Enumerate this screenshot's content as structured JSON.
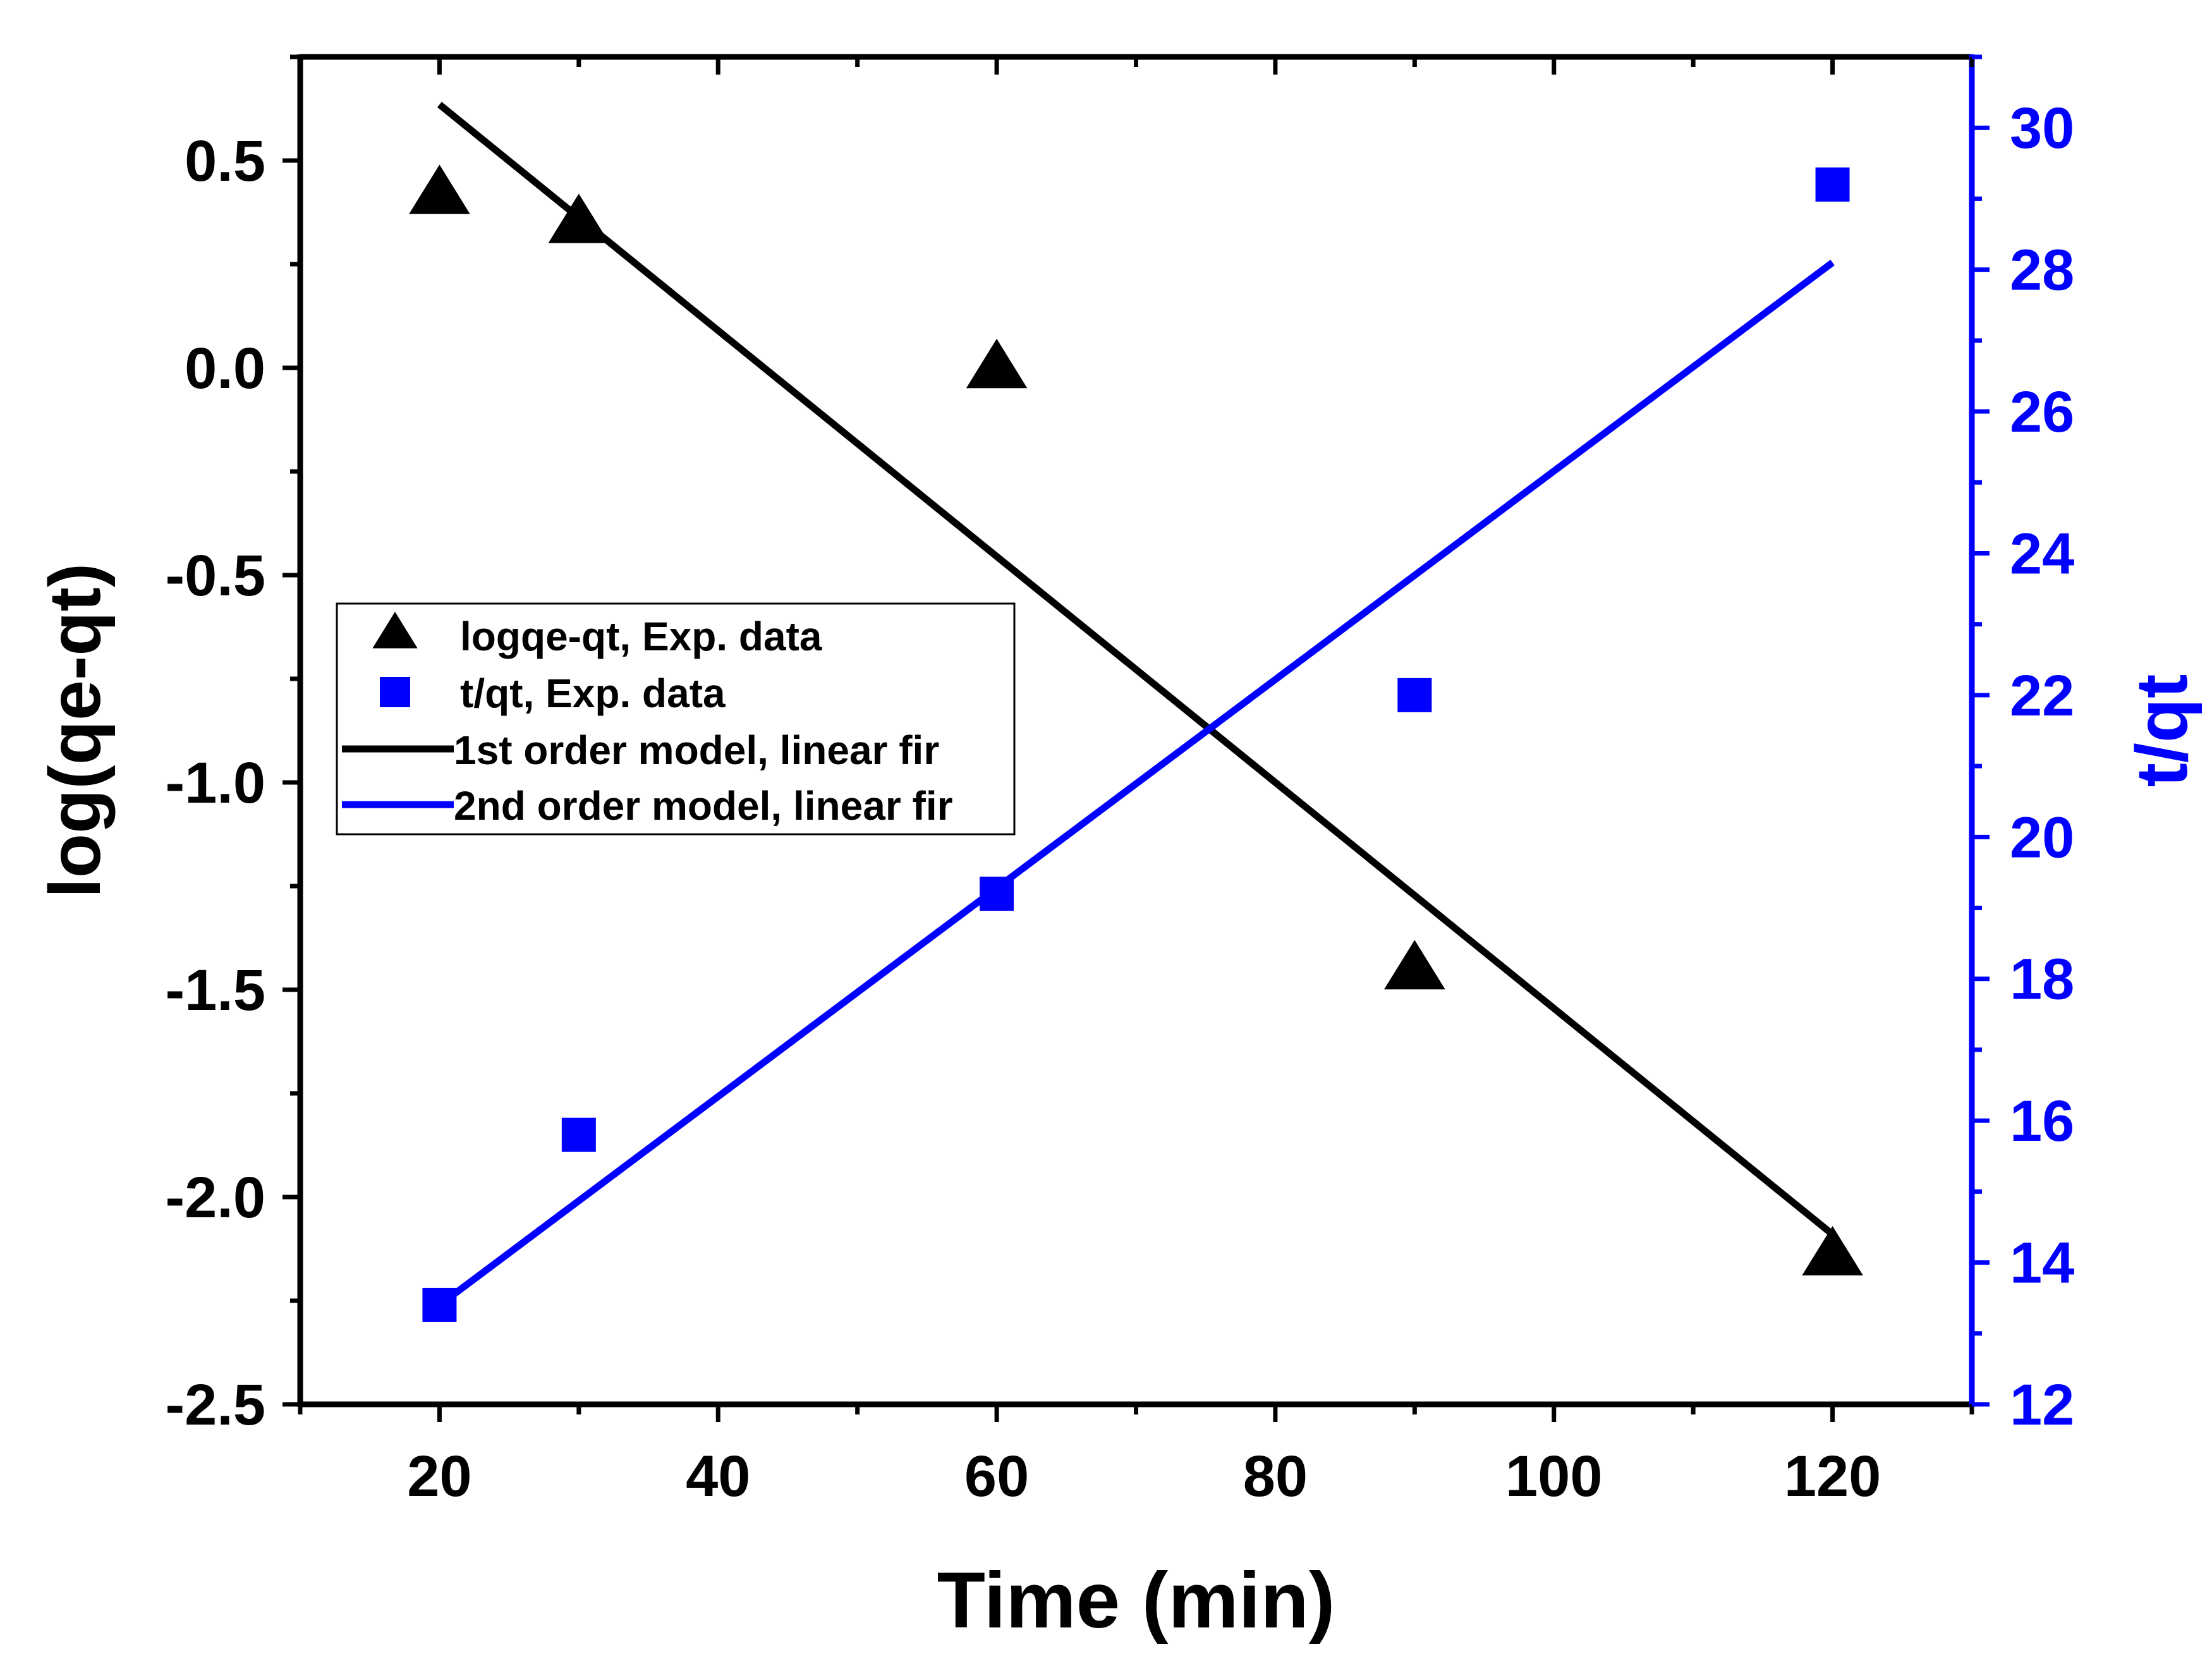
{
  "chart_data": {
    "type": "scatter",
    "title": "",
    "xlabel": "Time (min)",
    "ylabel_left": "log(qe-qt)",
    "ylabel_right": "t/qt",
    "xlim": [
      10,
      130
    ],
    "ylim_left": [
      -2.5,
      0.75
    ],
    "ylim_right": [
      12,
      31
    ],
    "x_ticks": [
      "20",
      "40",
      "60",
      "80",
      "100",
      "120"
    ],
    "y_left_ticks": [
      "0.5",
      "0.0",
      "-0.5",
      "-1.0",
      "-1.5",
      "-2.0",
      "-2.5"
    ],
    "y_right_ticks": [
      "30",
      "28",
      "26",
      "24",
      "22",
      "20",
      "18",
      "16",
      "14",
      "12"
    ],
    "grid": false,
    "legend_position": "middle-left",
    "colors": {
      "series1": "#000000",
      "series2": "#0000ff",
      "axis_right": "#0000ff"
    },
    "series": [
      {
        "name": "logqe-qt, Exp. data",
        "kind": "scatter",
        "marker": "triangle",
        "axis": "left",
        "color": "#000000",
        "x": [
          20,
          30,
          60,
          90,
          120
        ],
        "y": [
          0.42,
          0.35,
          0.0,
          -1.45,
          -2.14
        ]
      },
      {
        "name": "t/qt, Exp. data",
        "kind": "scatter",
        "marker": "square",
        "axis": "right",
        "color": "#0000ff",
        "x": [
          20,
          30,
          60,
          90,
          120
        ],
        "y": [
          13.4,
          15.8,
          19.2,
          22.0,
          29.2
        ]
      },
      {
        "name": "1st order model, linear fir",
        "kind": "line",
        "axis": "left",
        "color": "#000000",
        "x": [
          20,
          120
        ],
        "y": [
          0.635,
          -2.09
        ]
      },
      {
        "name": "2nd order model, linear fir",
        "kind": "line",
        "axis": "right",
        "color": "#0000ff",
        "x": [
          20,
          120
        ],
        "y": [
          13.4,
          28.1
        ]
      }
    ]
  }
}
